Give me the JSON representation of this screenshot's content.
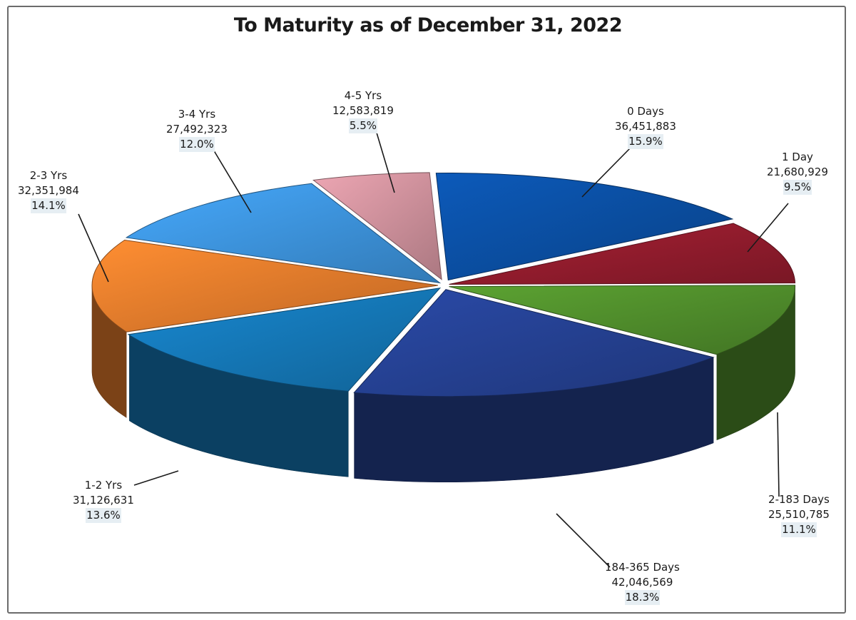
{
  "chart_data": {
    "type": "pie",
    "title": "To Maturity as of December 31, 2022",
    "slices": [
      {
        "label": "0 Days",
        "value": 36451883,
        "value_text": "36,451,883",
        "percent_text": "15.9%",
        "color": "#0a4c9e"
      },
      {
        "label": "1 Day",
        "value": 21680929,
        "value_text": "21,680,929",
        "percent_text": "9.5%",
        "color": "#8e1b2c"
      },
      {
        "label": "2-183 Days",
        "value": 25510785,
        "value_text": "25,510,785",
        "percent_text": "11.1%",
        "color": "#4e8a2a"
      },
      {
        "label": "184-365 Days",
        "value": 42046569,
        "value_text": "42,046,569",
        "percent_text": "18.3%",
        "color": "#243f8e"
      },
      {
        "label": "1-2 Yrs",
        "value": 31126631,
        "value_text": "31,126,631",
        "percent_text": "13.6%",
        "color": "#1474b2"
      },
      {
        "label": "2-3 Yrs",
        "value": 32351984,
        "value_text": "32,351,984",
        "percent_text": "14.1%",
        "color": "#e0782a"
      },
      {
        "label": "3-4 Yrs",
        "value": 27492323,
        "value_text": "27,492,323",
        "percent_text": "12.0%",
        "color": "#3b8fd6"
      },
      {
        "label": "4-5 Yrs",
        "value": 12583819,
        "value_text": "12,583,819",
        "percent_text": "5.5%",
        "color": "#c98d98"
      }
    ]
  }
}
